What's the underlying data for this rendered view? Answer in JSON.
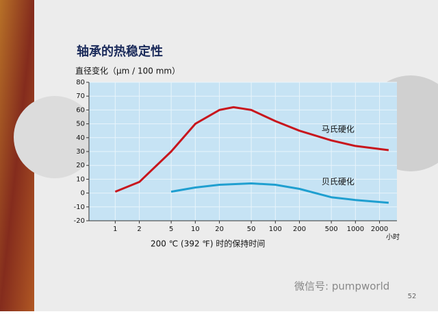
{
  "chart_data": {
    "type": "line",
    "title": "轴承的热稳定性",
    "y_label": "直径变化（μm / 100 mm）",
    "x_label": "200 ℃ (392 ℉) 时的保持时间",
    "x_unit": "小时",
    "xscale": "log",
    "xlim": [
      0.47,
      3300
    ],
    "ylim": [
      -20,
      80
    ],
    "xticks": [
      1,
      2,
      5,
      10,
      20,
      50,
      100,
      200,
      500,
      1000,
      2000
    ],
    "yticks": [
      -20,
      -10,
      0,
      10,
      20,
      30,
      40,
      50,
      60,
      70,
      80
    ],
    "grid": true,
    "series": [
      {
        "name": "马氏硬化",
        "color": "#c8161d",
        "x": [
          1,
          2,
          5,
          10,
          20,
          30,
          50,
          100,
          200,
          500,
          1000,
          2600
        ],
        "values": [
          1,
          8,
          30,
          50,
          60,
          62,
          60,
          52,
          45,
          38,
          34,
          31
        ]
      },
      {
        "name": "贝氏硬化",
        "color": "#1f9fd0",
        "x": [
          5,
          10,
          20,
          50,
          100,
          200,
          500,
          1000,
          2600
        ],
        "values": [
          1,
          4,
          6,
          7,
          6,
          3,
          -3,
          -5,
          -7
        ]
      }
    ],
    "watermark": "微信号: pumpworld",
    "page_number": "52"
  }
}
